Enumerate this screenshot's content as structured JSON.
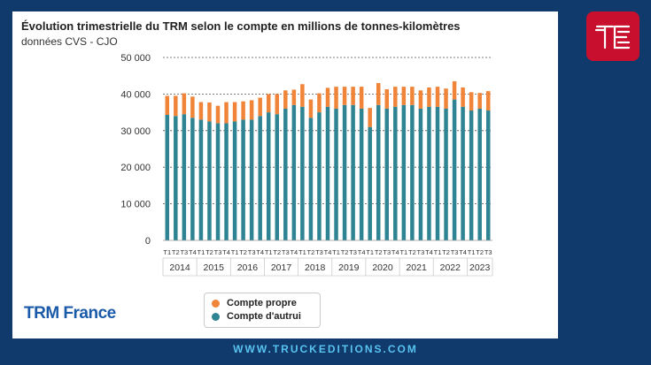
{
  "footer": {
    "site": "WWW.TRUCKEDITIONS.COM"
  },
  "brand": {
    "name": "TRM France"
  },
  "logo": {
    "icon": "te-logo-icon",
    "color": "#c8102e"
  },
  "colors": {
    "propre": "#f0853a",
    "autrui": "#2f8493",
    "background": "#0f3a6b"
  },
  "chart_data": {
    "type": "bar",
    "stacked": true,
    "title": "Évolution trimestrielle du TRM selon le compte en millions de tonnes-kilomètres",
    "subtitle": "données CVS - CJO",
    "ylim": [
      0,
      50000
    ],
    "yticks": [
      "0",
      "10 000",
      "20 000",
      "30 000",
      "40 000",
      "50 000"
    ],
    "ytick_values": [
      0,
      10000,
      20000,
      30000,
      40000,
      50000
    ],
    "grid": true,
    "legend_position": "bottom",
    "quarters": [
      "T1",
      "T2",
      "T3",
      "T4",
      "T1",
      "T2",
      "T3",
      "T4",
      "T1",
      "T2",
      "T3",
      "T4",
      "T1",
      "T2",
      "T3",
      "T4",
      "T1",
      "T2",
      "T3",
      "T4",
      "T1",
      "T2",
      "T3",
      "T4",
      "T1",
      "T2",
      "T3",
      "T4",
      "T1",
      "T2",
      "T3",
      "T4",
      "T1",
      "T2",
      "T3",
      "T4",
      "T1",
      "T2",
      "T3"
    ],
    "years": [
      "2014",
      "2015",
      "2016",
      "2017",
      "2018",
      "2019",
      "2020",
      "2021",
      "2022",
      "2023"
    ],
    "year_counts": [
      4,
      4,
      4,
      4,
      4,
      4,
      4,
      4,
      4,
      3
    ],
    "series": [
      {
        "name": "Compte d'autrui",
        "color": "#2f8493",
        "values": [
          34300,
          34000,
          34500,
          33500,
          33000,
          32500,
          32000,
          32000,
          32500,
          33000,
          33000,
          34000,
          35000,
          34500,
          36000,
          37000,
          36500,
          33500,
          35000,
          36500,
          36000,
          37000,
          37000,
          36000,
          31000,
          37000,
          36000,
          36500,
          37000,
          37000,
          36000,
          36500,
          36500,
          36000,
          38500,
          36500,
          35500,
          36000,
          35500
        ]
      },
      {
        "name": "Compte propre",
        "color": "#f0853a",
        "values": [
          5200,
          5500,
          5700,
          5800,
          4800,
          5200,
          4800,
          5800,
          5300,
          5000,
          5300,
          5000,
          5000,
          5500,
          5000,
          4200,
          6200,
          5000,
          5200,
          5200,
          6000,
          5000,
          5000,
          6000,
          5200,
          6000,
          5300,
          5500,
          5000,
          5000,
          5000,
          5300,
          5500,
          5500,
          5000,
          5300,
          5000,
          4300,
          5300
        ]
      }
    ]
  }
}
